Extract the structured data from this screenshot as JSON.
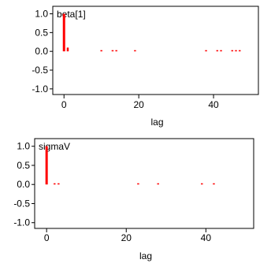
{
  "chart_data": [
    {
      "type": "bar",
      "title": "beta[1]",
      "xlabel": "lag",
      "ylabel": "",
      "xlim": [
        -3,
        52
      ],
      "ylim": [
        -1.15,
        1.2
      ],
      "xticks": [
        0,
        20,
        40
      ],
      "yticks": [
        1.0,
        0.5,
        0.0,
        -0.5,
        -1.0
      ],
      "xtick_labels": [
        "0",
        "20",
        "40"
      ],
      "ytick_labels": [
        "1.0",
        "0.5",
        "0.0",
        "-0.5",
        "-1.0"
      ],
      "bar_color": "#ff0000",
      "lags": [
        0,
        1,
        10,
        13,
        14,
        19,
        38,
        41,
        42,
        45,
        46,
        47
      ],
      "values": [
        1.0,
        0.1,
        0.01,
        0.01,
        0.01,
        0.01,
        0.01,
        0.01,
        0.01,
        0.01,
        0.01,
        0.01
      ]
    },
    {
      "type": "bar",
      "title": "sigmaV",
      "xlabel": "lag",
      "ylabel": "",
      "xlim": [
        -3,
        52
      ],
      "ylim": [
        -1.15,
        1.2
      ],
      "xticks": [
        0,
        20,
        40
      ],
      "yticks": [
        1.0,
        0.5,
        0.0,
        -0.5,
        -1.0
      ],
      "xtick_labels": [
        "0",
        "20",
        "40"
      ],
      "ytick_labels": [
        "1.0",
        "0.5",
        "0.0",
        "-0.5",
        "-1.0"
      ],
      "bar_color": "#ff0000",
      "lags": [
        0,
        2,
        3,
        23,
        28,
        39,
        42
      ],
      "values": [
        1.0,
        0.01,
        0.01,
        0.01,
        0.01,
        0.01,
        0.01
      ]
    }
  ]
}
